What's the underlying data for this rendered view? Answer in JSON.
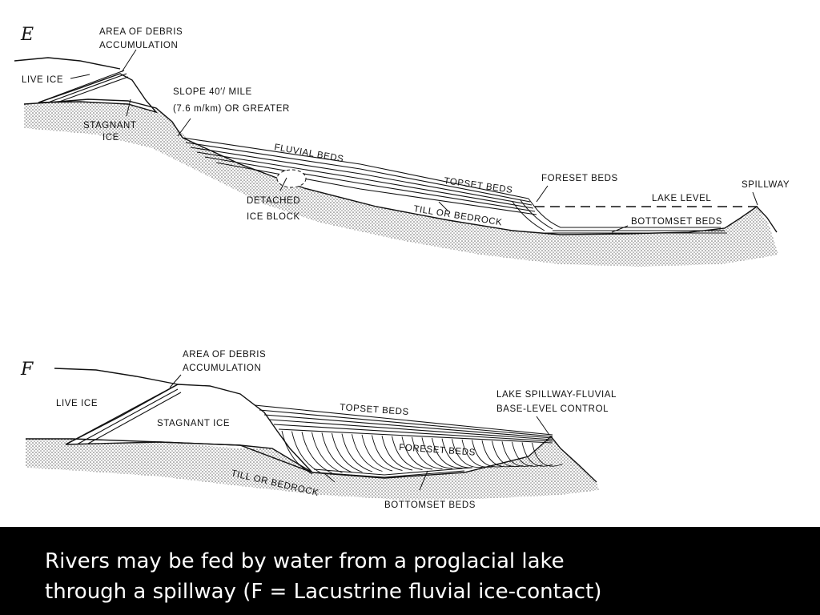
{
  "panel_e": {
    "letter": "E",
    "debris_1": "AREA OF DEBRIS",
    "debris_2": "ACCUMULATION",
    "live_ice": "LIVE ICE",
    "stagnant_1": "STAGNANT",
    "stagnant_2": "ICE",
    "slope_1": "SLOPE 40′/ MILE",
    "slope_2": "(7.6 m/km) OR GREATER",
    "fluvial": "FLUVIAL BEDS",
    "topset": "TOPSET BEDS",
    "foreset": "FORESET BEDS",
    "spillway": "SPILLWAY",
    "lake_level": "LAKE LEVEL",
    "detached_1": "DETACHED",
    "detached_2": "ICE BLOCK",
    "till": "TILL OR BEDROCK",
    "bottomset": "BOTTOMSET BEDS"
  },
  "panel_f": {
    "letter": "F",
    "debris_1": "AREA OF DEBRIS",
    "debris_2": "ACCUMULATION",
    "live_ice": "LIVE ICE",
    "stagnant": "STAGNANT ICE",
    "topset": "TOPSET BEDS",
    "spillway_1": "LAKE SPILLWAY-FLUVIAL",
    "spillway_2": "BASE-LEVEL CONTROL",
    "foreset": "FORESET BEDS",
    "till": "TILL OR BEDROCK",
    "bottomset": "BOTTOMSET BEDS"
  },
  "caption": {
    "line1": "Rivers may be fed by water from a proglacial lake",
    "line2": "through a spillway (F = Lacustrine fluvial ice-contact)"
  }
}
